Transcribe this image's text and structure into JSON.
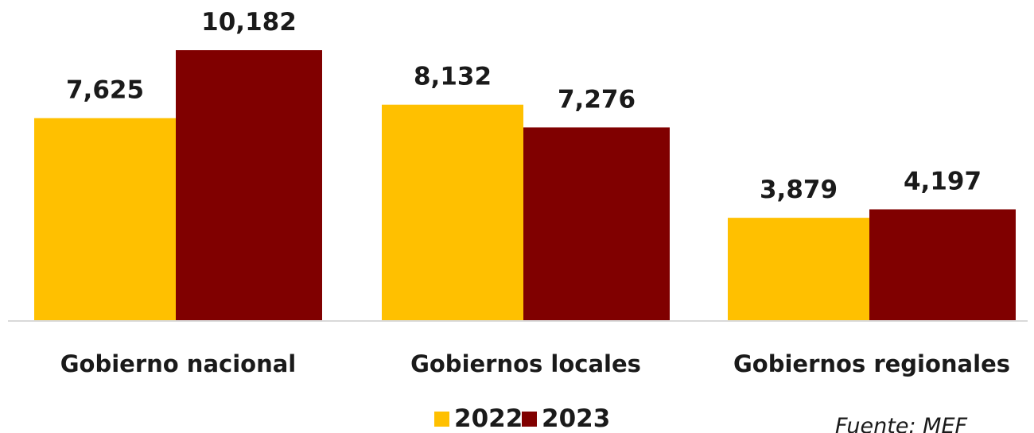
{
  "chart_data": {
    "type": "bar",
    "categories": [
      "Gobierno nacional",
      "Gobiernos locales",
      "Gobiernos regionales"
    ],
    "series": [
      {
        "name": "2022",
        "values": [
          7625,
          8132,
          3879
        ],
        "labels": [
          "7,625",
          "8,132",
          "3,879"
        ],
        "color": "#FFC000"
      },
      {
        "name": "2023",
        "values": [
          10182,
          7276,
          4197
        ],
        "labels": [
          "10,182",
          "7,276",
          "4,197"
        ],
        "color": "#800000"
      }
    ],
    "title": "",
    "xlabel": "",
    "ylabel": "",
    "ylim": [
      0,
      11500
    ],
    "grid": false,
    "legend_position": "bottom-center",
    "source": "Fuente: MEF"
  }
}
